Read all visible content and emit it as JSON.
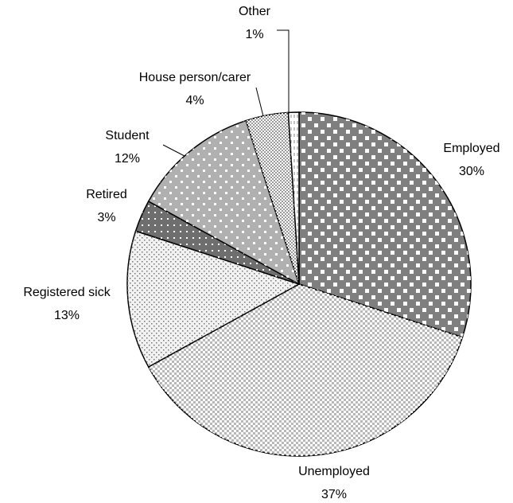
{
  "chart_data": {
    "type": "pie",
    "categories": [
      "Employed",
      "Unemployed",
      "Registered sick",
      "Retired",
      "Student",
      "House person/carer",
      "Other"
    ],
    "values": [
      30,
      37,
      13,
      3,
      12,
      4,
      1
    ],
    "value_labels": [
      "30%",
      "37%",
      "13%",
      "3%",
      "12%",
      "4%",
      "1%"
    ],
    "colors": [
      "#7f7f7f",
      "#b8b8b8",
      "#f2f2f2",
      "#6e6e6e",
      "#b0b0b0",
      "#9a9a9a",
      "#ffffff"
    ]
  }
}
